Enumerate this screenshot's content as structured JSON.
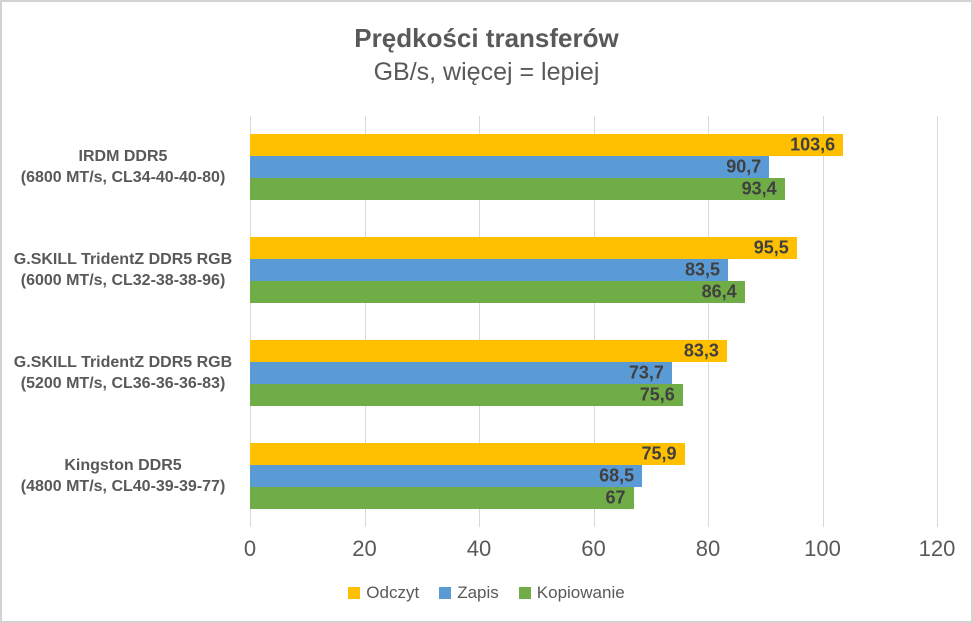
{
  "chart_data": {
    "type": "bar",
    "orientation": "horizontal",
    "title": "Prędkości transferów",
    "subtitle": "GB/s, więcej = lepiej",
    "categories": [
      {
        "name": "IRDM DDR5",
        "spec": "(6800 MT/s, CL34-40-40-80)"
      },
      {
        "name": "G.SKILL TridentZ DDR5 RGB",
        "spec": "(6000 MT/s, CL32-38-38-96)"
      },
      {
        "name": "G.SKILL TridentZ DDR5 RGB",
        "spec": "(5200 MT/s, CL36-36-36-83)"
      },
      {
        "name": "Kingston DDR5",
        "spec": "(4800 MT/s, CL40-39-39-77)"
      }
    ],
    "series": [
      {
        "name": "Odczyt",
        "color": "#FFC000",
        "values": [
          103.6,
          95.5,
          83.3,
          75.9
        ]
      },
      {
        "name": "Zapis",
        "color": "#5B9BD5",
        "values": [
          90.7,
          83.5,
          73.7,
          68.5
        ]
      },
      {
        "name": "Kopiowanie",
        "color": "#70AD47",
        "values": [
          93.4,
          86.4,
          75.6,
          67
        ]
      }
    ],
    "xlim": [
      0,
      120
    ],
    "xticks": [
      0,
      20,
      40,
      60,
      80,
      100,
      120
    ],
    "grid": true,
    "legend_position": "bottom",
    "decimal_separator": ","
  },
  "colors": {
    "text": "#595959",
    "value_label": "#404040",
    "gridline": "#D9D9D9",
    "border": "#D3D3D3",
    "background": "#FFFFFF"
  }
}
